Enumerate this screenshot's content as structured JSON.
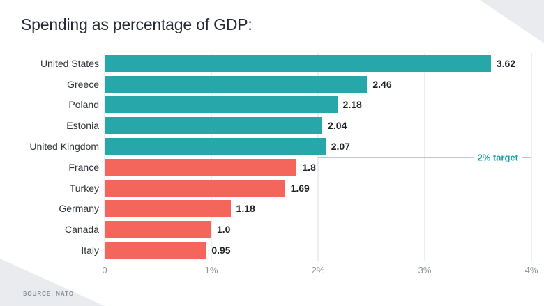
{
  "chart_data": {
    "type": "bar",
    "orientation": "horizontal",
    "title": "Spending as percentage of GDP:",
    "categories": [
      "United States",
      "Greece",
      "Poland",
      "Estonia",
      "United Kingdom",
      "France",
      "Turkey",
      "Germany",
      "Canada",
      "Italy"
    ],
    "values": [
      3.62,
      2.46,
      2.18,
      2.04,
      2.07,
      1.8,
      1.69,
      1.18,
      1.0,
      0.95
    ],
    "value_labels": [
      "3.62",
      "2.46",
      "2.18",
      "2.04",
      "2.07",
      "1.8",
      "1.69",
      "1.18",
      "1.0",
      "0.95"
    ],
    "bar_colors": [
      "teal",
      "teal",
      "teal",
      "teal",
      "teal",
      "salmon",
      "salmon",
      "salmon",
      "salmon",
      "salmon"
    ],
    "colors": {
      "teal": "#27a7a9",
      "salmon": "#f4665c",
      "target_text": "#1b9fa4",
      "gridline": "#dcdee2",
      "target_line": "#c3c7cc",
      "corner": "#e9ebee"
    },
    "xlim": [
      0,
      4
    ],
    "x_ticks": [
      "0",
      "1%",
      "2%",
      "3%",
      "4%"
    ],
    "x_tick_values": [
      0,
      1,
      2,
      3,
      4
    ],
    "grid": true,
    "legend": false,
    "annotation": {
      "label": "2% target",
      "value": 2,
      "after_category": "United Kingdom"
    },
    "source": "SOURCE: NATO"
  }
}
